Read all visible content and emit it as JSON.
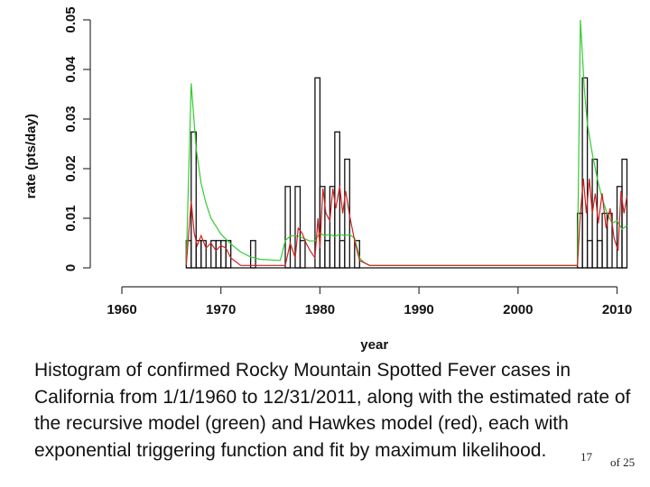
{
  "chart_data": {
    "type": "bar",
    "title": "",
    "xlabel": "year",
    "ylabel": "rate (pts/day)",
    "xlim": [
      1960,
      2011
    ],
    "ylim": [
      0,
      0.05
    ],
    "x_ticks": [
      1960,
      1970,
      1980,
      1990,
      2000,
      2010
    ],
    "y_ticks": [
      0,
      0.01,
      0.02,
      0.03,
      0.04,
      0.05
    ],
    "y_tick_labels": [
      "0",
      "0.01",
      "0.02",
      "0.03",
      "0.04",
      "0.05"
    ],
    "grid": false,
    "histogram": {
      "bin_width": 0.5,
      "bins": [
        {
          "start": 1966.5,
          "value": 0.0055
        },
        {
          "start": 1967.0,
          "value": 0.0274
        },
        {
          "start": 1967.5,
          "value": 0.0055
        },
        {
          "start": 1968.0,
          "value": 0.0055
        },
        {
          "start": 1968.5,
          "value": 0.0
        },
        {
          "start": 1969.0,
          "value": 0.0055
        },
        {
          "start": 1969.5,
          "value": 0.0055
        },
        {
          "start": 1970.0,
          "value": 0.0055
        },
        {
          "start": 1970.5,
          "value": 0.0055
        },
        {
          "start": 1973.0,
          "value": 0.0055
        },
        {
          "start": 1976.5,
          "value": 0.0164
        },
        {
          "start": 1977.5,
          "value": 0.0164
        },
        {
          "start": 1978.0,
          "value": 0.0055
        },
        {
          "start": 1979.5,
          "value": 0.0383
        },
        {
          "start": 1980.0,
          "value": 0.0164
        },
        {
          "start": 1980.5,
          "value": 0.0055
        },
        {
          "start": 1981.0,
          "value": 0.0164
        },
        {
          "start": 1981.5,
          "value": 0.0274
        },
        {
          "start": 1982.0,
          "value": 0.0055
        },
        {
          "start": 1982.5,
          "value": 0.0219
        },
        {
          "start": 1983.5,
          "value": 0.0055
        },
        {
          "start": 2006.0,
          "value": 0.011
        },
        {
          "start": 2006.5,
          "value": 0.0383
        },
        {
          "start": 2007.0,
          "value": 0.0055
        },
        {
          "start": 2007.5,
          "value": 0.0219
        },
        {
          "start": 2008.0,
          "value": 0.0055
        },
        {
          "start": 2008.5,
          "value": 0.011
        },
        {
          "start": 2009.0,
          "value": 0.011
        },
        {
          "start": 2009.5,
          "value": 0.0
        },
        {
          "start": 2010.0,
          "value": 0.0164
        },
        {
          "start": 2010.5,
          "value": 0.0219
        }
      ]
    },
    "series": [
      {
        "color": "#33cc33",
        "x": [
          1966.5,
          1967.0,
          1967.5,
          1968.0,
          1968.5,
          1969.0,
          1970.0,
          1971.0,
          1972.0,
          1973.0,
          1974.0,
          1976.0,
          1976.5,
          1977.0,
          1977.5,
          1978.0,
          1978.5,
          1979.0,
          1979.5,
          1980.0,
          1980.5,
          1981.0,
          1981.5,
          1982.0,
          1982.5,
          1983.0,
          1983.5,
          1984.0,
          1984.5,
          1985.0,
          1990.0,
          2000.0,
          2006.0,
          2006.3,
          2006.7,
          2007.0,
          2007.5,
          2008.0,
          2008.5,
          2009.0,
          2009.5,
          2010.0,
          2010.5,
          2011.0
        ],
        "y": [
          0.001,
          0.0372,
          0.024,
          0.017,
          0.013,
          0.01,
          0.0068,
          0.0048,
          0.0032,
          0.0022,
          0.0017,
          0.0015,
          0.0055,
          0.0064,
          0.0065,
          0.0063,
          0.0058,
          0.0054,
          0.0055,
          0.007,
          0.0065,
          0.0068,
          0.0063,
          0.0068,
          0.0065,
          0.0067,
          0.006,
          0.002,
          0.001,
          0.0005,
          0.0005,
          0.0005,
          0.0005,
          0.05,
          0.036,
          0.029,
          0.023,
          0.018,
          0.014,
          0.011,
          0.009,
          0.0095,
          0.0078,
          0.0085
        ]
      },
      {
        "color": "#cc2222",
        "x": [
          1966.5,
          1967.0,
          1967.3,
          1967.6,
          1968.0,
          1968.5,
          1969.0,
          1969.5,
          1970.0,
          1970.5,
          1971.0,
          1972.0,
          1976.5,
          1977.0,
          1977.5,
          1977.8,
          1978.2,
          1978.6,
          1979.0,
          1979.5,
          1979.8,
          1980.0,
          1980.3,
          1980.6,
          1981.0,
          1981.3,
          1981.6,
          1982.0,
          1982.3,
          1982.6,
          1983.0,
          1983.5,
          1984.0,
          1985.0,
          1990.0,
          2000.0,
          2006.0,
          2006.3,
          2006.6,
          2006.9,
          2007.2,
          2007.5,
          2007.8,
          2008.1,
          2008.5,
          2008.9,
          2009.3,
          2009.7,
          2010.1,
          2010.4,
          2010.7,
          2011.0
        ],
        "y": [
          0.0005,
          0.0135,
          0.007,
          0.0045,
          0.0065,
          0.004,
          0.005,
          0.0035,
          0.0045,
          0.004,
          0.002,
          0.0005,
          0.0005,
          0.005,
          0.002,
          0.008,
          0.007,
          0.005,
          0.0035,
          0.002,
          0.01,
          0.004,
          0.016,
          0.011,
          0.0095,
          0.016,
          0.012,
          0.0165,
          0.011,
          0.0155,
          0.0105,
          0.0055,
          0.0015,
          0.0005,
          0.0005,
          0.0005,
          0.0005,
          0.011,
          0.018,
          0.011,
          0.018,
          0.011,
          0.015,
          0.009,
          0.015,
          0.008,
          0.012,
          0.006,
          0.0035,
          0.0155,
          0.011,
          0.0145
        ]
      }
    ]
  },
  "caption": {
    "text": "Histogram of confirmed Rocky Mountain Spotted Fever cases in California from 1/1/1960 to 12/31/2011, along with the estimated rate of the recursive model (green) and Hawkes model (red), each with exponential triggering function and fit by maximum likelihood."
  },
  "page": {
    "number": "17",
    "of_total": "of 25"
  }
}
